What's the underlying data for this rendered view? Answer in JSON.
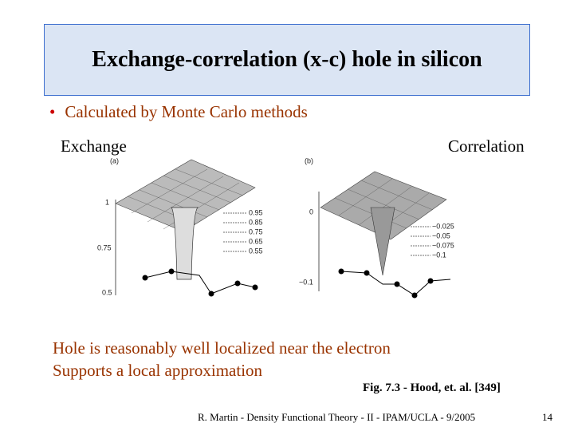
{
  "title": "Exchange-correlation (x-c) hole in silicon",
  "bullets": [
    "Calculated by Monte Carlo methods"
  ],
  "figure": {
    "left": {
      "heading": "Exchange",
      "panel": "(a)",
      "axis_labels": [
        "1",
        "0.75",
        "0.5"
      ],
      "contour_labels": [
        "0.95",
        "0.85",
        "0.75",
        "0.65",
        "0.55"
      ]
    },
    "right": {
      "heading": "Correlation",
      "panel": "(b)",
      "axis_labels": [
        "0",
        "−0.1"
      ],
      "contour_labels": [
        "−0.025",
        "−0.05",
        "−0.075",
        "−0.1"
      ]
    },
    "caption": "Fig. 7.3 - Hood, et. al. [349]"
  },
  "notes": [
    "Hole is reasonably well localized near the electron",
    "Supports a local approximation"
  ],
  "footer": {
    "credit": "R. Martin - Density Functional Theory - II - IPAM/UCLA - 9/2005",
    "page": "14"
  }
}
